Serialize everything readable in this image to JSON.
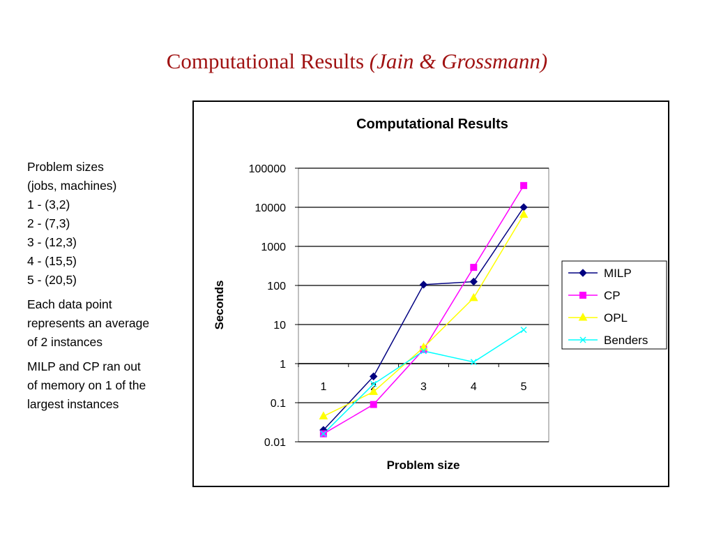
{
  "slide": {
    "title_main": "Computational Results",
    "title_italic": "(Jain & Grossmann)"
  },
  "notes": {
    "sizes_heading": [
      "Problem sizes",
      "(jobs, machines)"
    ],
    "sizes": [
      "1 - (3,2)",
      "2 - (7,3)",
      "3 - (12,3)",
      "4 - (15,5)",
      "5 - (20,5)"
    ],
    "note1": [
      "Each data point",
      "represents an average",
      "of 2 instances"
    ],
    "note2": [
      "MILP and CP ran out",
      "of memory on 1 of the",
      "largest instances"
    ]
  },
  "chart_data": {
    "type": "line",
    "title": "Computational Results",
    "xlabel": "Problem size",
    "ylabel": "Seconds",
    "y_scale": "log",
    "ylim": [
      0.01,
      100000
    ],
    "y_ticks": [
      "0.01",
      "0.1",
      "1",
      "10",
      "100",
      "1000",
      "10000",
      "100000"
    ],
    "x": [
      1,
      2,
      3,
      4,
      5
    ],
    "x_tick_labels": [
      "1",
      "2",
      "3",
      "4",
      "5"
    ],
    "grid": "horizontal",
    "legend": "right",
    "series": [
      {
        "name": "MILP",
        "color": "#000080",
        "marker": "diamond",
        "values": [
          0.02,
          0.47,
          105,
          125,
          10000
        ]
      },
      {
        "name": "CP",
        "color": "#ff00ff",
        "marker": "square",
        "values": [
          0.016,
          0.09,
          2.3,
          290,
          36000
        ]
      },
      {
        "name": "OPL",
        "color": "#ffff00",
        "marker": "triangle",
        "values": [
          0.045,
          0.19,
          2.6,
          48,
          6500
        ]
      },
      {
        "name": "Benders",
        "color": "#00ffff",
        "marker": "x",
        "values": [
          0.016,
          0.3,
          2.1,
          1.1,
          7.3
        ]
      }
    ]
  }
}
